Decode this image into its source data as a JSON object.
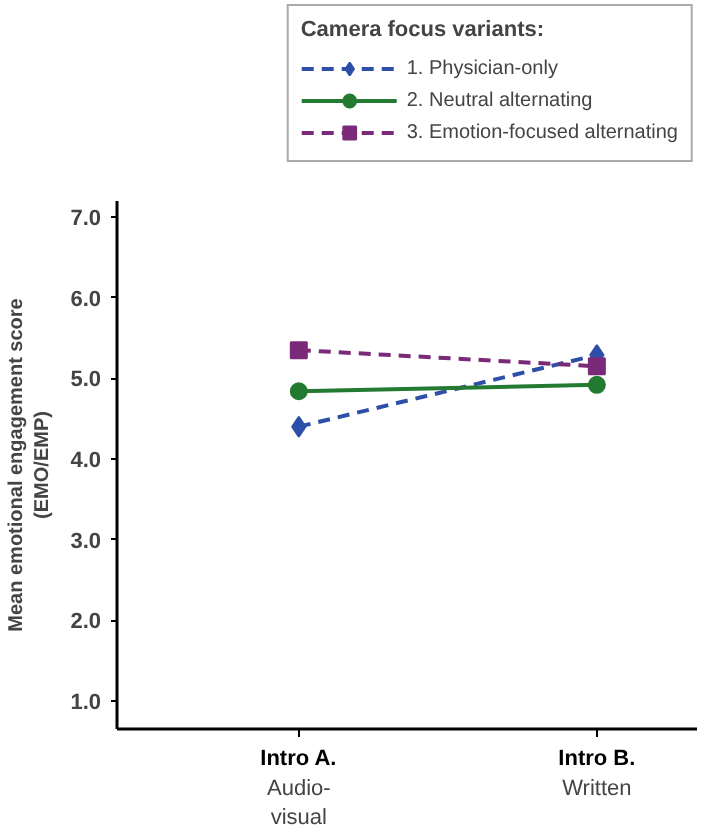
{
  "chart_data": {
    "type": "line",
    "ylabel": "Mean emotional engagement score\n(EMO/EMP)",
    "legend_title": "Camera focus variants:",
    "categories": [
      "Intro A.\nAudio-\nvisual",
      "Intro B.\nWritten"
    ],
    "ylim": [
      0.65,
      7.2
    ],
    "yticks": [
      {
        "value": 1,
        "label": "1.0"
      },
      {
        "value": 2,
        "label": "2.0"
      },
      {
        "value": 3,
        "label": "3.0"
      },
      {
        "value": 4,
        "label": "4.0"
      },
      {
        "value": 5,
        "label": "5.0"
      },
      {
        "value": 6,
        "label": "6.0"
      },
      {
        "value": 7,
        "label": "7.0"
      }
    ],
    "grid": false,
    "legend": "top right",
    "series": [
      {
        "name": "1. Physician-only",
        "color": "#2e4fa8",
        "values": [
          4.4,
          5.29
        ],
        "marker": "diamond",
        "line_style": "dashed"
      },
      {
        "name": "2. Neutral alternating",
        "color": "#237a30",
        "values": [
          4.84,
          4.92
        ],
        "marker": "circle",
        "line_style": "solid"
      },
      {
        "name": "3. Emotion-focused alternating",
        "color": "#7a2a78",
        "values": [
          5.35,
          5.15
        ],
        "marker": "square",
        "line_style": "dashed"
      }
    ]
  }
}
